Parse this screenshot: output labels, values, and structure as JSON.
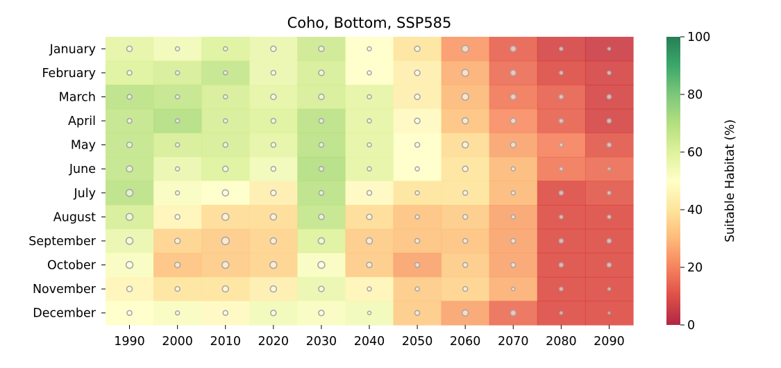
{
  "chart_data": {
    "type": "heatmap",
    "title": "Coho, Bottom, SSP585",
    "x": [
      "1990",
      "2000",
      "2010",
      "2020",
      "2030",
      "2040",
      "2050",
      "2060",
      "2070",
      "2080",
      "2090"
    ],
    "y": [
      "January",
      "February",
      "March",
      "April",
      "May",
      "June",
      "July",
      "August",
      "September",
      "October",
      "November",
      "December"
    ],
    "values": [
      [
        58,
        54,
        60,
        56,
        64,
        50,
        40,
        24,
        14,
        8,
        6
      ],
      [
        60,
        62,
        66,
        56,
        62,
        50,
        44,
        28,
        16,
        10,
        8
      ],
      [
        68,
        66,
        62,
        58,
        62,
        58,
        44,
        30,
        18,
        14,
        8
      ],
      [
        66,
        70,
        62,
        60,
        68,
        58,
        48,
        32,
        22,
        14,
        8
      ],
      [
        66,
        62,
        62,
        58,
        68,
        58,
        50,
        38,
        26,
        20,
        12
      ],
      [
        66,
        56,
        60,
        54,
        70,
        58,
        50,
        40,
        30,
        18,
        16
      ],
      [
        68,
        52,
        50,
        44,
        68,
        48,
        40,
        40,
        30,
        10,
        12
      ],
      [
        62,
        46,
        38,
        38,
        66,
        38,
        32,
        34,
        26,
        10,
        10
      ],
      [
        56,
        36,
        34,
        36,
        60,
        34,
        32,
        32,
        26,
        10,
        10
      ],
      [
        52,
        32,
        34,
        36,
        52,
        34,
        26,
        34,
        26,
        10,
        10
      ],
      [
        46,
        40,
        40,
        44,
        56,
        46,
        34,
        36,
        28,
        10,
        10
      ],
      [
        50,
        52,
        48,
        54,
        52,
        54,
        34,
        26,
        16,
        10,
        10
      ]
    ],
    "marker_sizes": [
      [
        4.0,
        3.0,
        3.0,
        4.0,
        4.0,
        3.0,
        4.0,
        5.0,
        4.0,
        2.5,
        2.0
      ],
      [
        3.5,
        3.0,
        3.0,
        3.5,
        4.0,
        3.0,
        4.0,
        5.0,
        4.0,
        2.5,
        2.5
      ],
      [
        3.5,
        3.0,
        3.0,
        4.0,
        4.0,
        3.0,
        4.0,
        5.0,
        4.0,
        3.0,
        3.0
      ],
      [
        3.5,
        3.0,
        3.0,
        3.5,
        3.5,
        3.0,
        4.0,
        4.5,
        4.0,
        3.0,
        3.0
      ],
      [
        4.0,
        3.0,
        3.5,
        3.5,
        3.5,
        3.0,
        3.5,
        4.5,
        4.0,
        2.5,
        3.0
      ],
      [
        4.5,
        3.0,
        4.0,
        3.5,
        3.5,
        3.0,
        3.0,
        4.0,
        3.0,
        2.5,
        2.0
      ],
      [
        5.0,
        3.0,
        4.5,
        4.0,
        3.5,
        3.5,
        3.0,
        3.5,
        3.0,
        3.0,
        2.5
      ],
      [
        5.0,
        3.5,
        5.0,
        4.5,
        4.0,
        4.0,
        3.0,
        3.5,
        3.0,
        2.5,
        2.5
      ],
      [
        5.0,
        4.0,
        5.5,
        4.5,
        4.5,
        4.5,
        3.5,
        3.5,
        3.5,
        3.0,
        3.0
      ],
      [
        5.0,
        4.0,
        5.0,
        5.0,
        5.0,
        4.0,
        3.5,
        3.5,
        3.5,
        3.0,
        3.0
      ],
      [
        4.0,
        3.5,
        4.5,
        4.5,
        4.0,
        3.0,
        3.0,
        3.5,
        2.5,
        2.5,
        2.0
      ],
      [
        3.5,
        3.0,
        3.5,
        4.0,
        4.0,
        2.5,
        3.5,
        4.5,
        4.0,
        2.0,
        1.5
      ]
    ],
    "colorbar": {
      "label": "Suitable Habitat (%)",
      "range": [
        0,
        100
      ],
      "ticks": [
        "0",
        "20",
        "40",
        "60",
        "80",
        "100"
      ],
      "colormap": "RdYlGn"
    },
    "grid": false,
    "legend": "none"
  }
}
